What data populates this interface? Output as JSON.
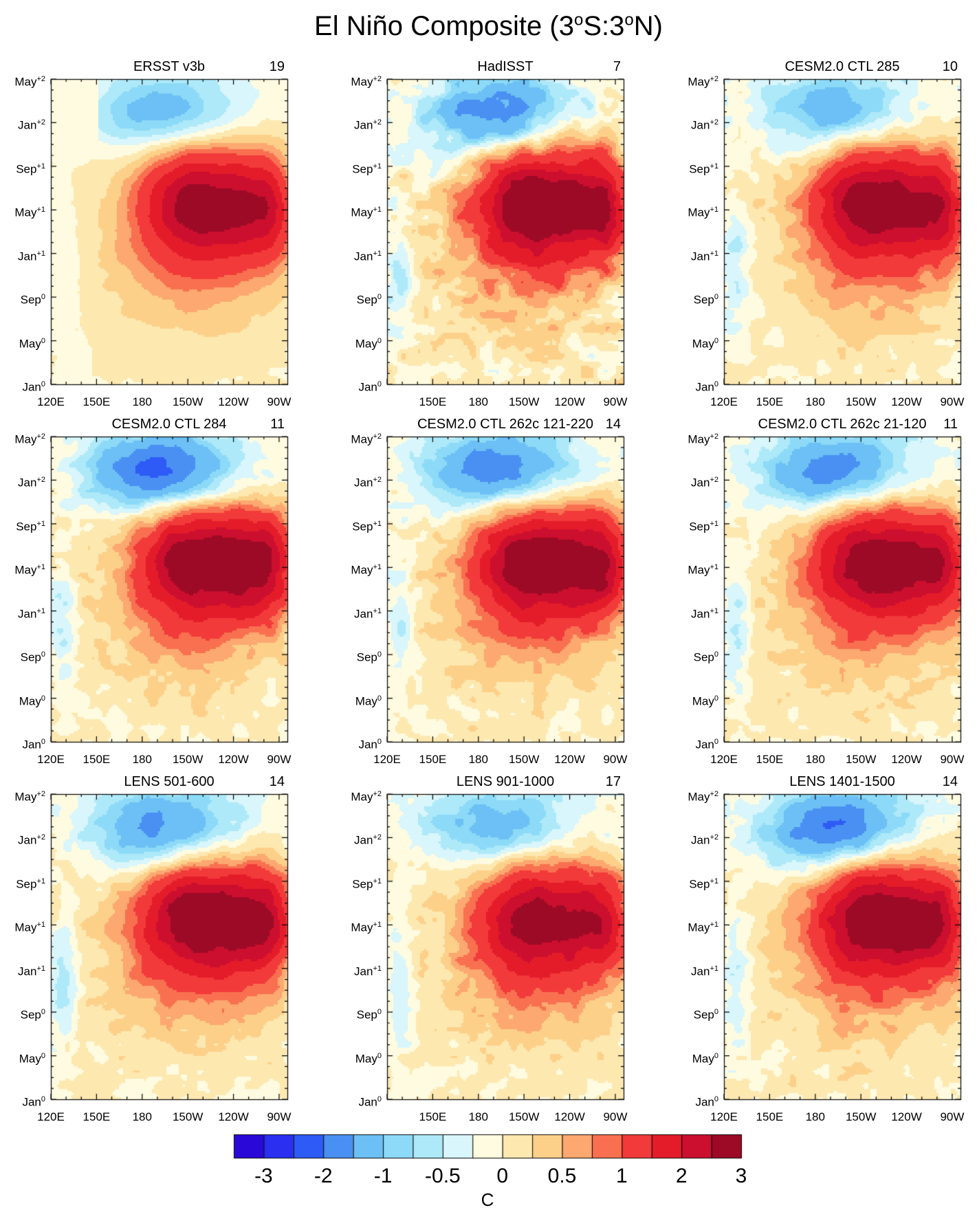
{
  "figure": {
    "title_base": "El Niño Composite (3",
    "title_parts": [
      "El Niño Composite (3",
      "o",
      "S:3",
      "o",
      "N)"
    ],
    "units": "C"
  },
  "colorbar": {
    "labels": [
      "-3",
      "-2",
      "-1",
      "-0.5",
      "0",
      "0.5",
      "1",
      "2",
      "3"
    ],
    "levels": [
      -3,
      -2.5,
      -2,
      -1.5,
      -1,
      -0.75,
      -0.5,
      -0.25,
      0,
      0.25,
      0.5,
      0.75,
      1,
      1.5,
      2,
      2.5,
      3
    ],
    "colors": [
      "#2a09d8",
      "#2a2ff0",
      "#2e5bf5",
      "#4a90f2",
      "#6cc0f5",
      "#8cdaf7",
      "#aee9f9",
      "#d8f6fb",
      "#fffbe0",
      "#fde8b0",
      "#fdd08a",
      "#fca870",
      "#f87050",
      "#f23a3a",
      "#e41c2a",
      "#cc0f2e",
      "#9c0a26"
    ]
  },
  "axes": {
    "y_ticks": [
      {
        "month": "Jan",
        "sup": "0"
      },
      {
        "month": "May",
        "sup": "0"
      },
      {
        "month": "Sep",
        "sup": "0"
      },
      {
        "month": "Jan",
        "sup": "+1"
      },
      {
        "month": "May",
        "sup": "+1"
      },
      {
        "month": "Sep",
        "sup": "+1"
      },
      {
        "month": "Jan",
        "sup": "+2"
      },
      {
        "month": "May",
        "sup": "+2"
      }
    ],
    "x_ticks": [
      "120E",
      "150E",
      "180",
      "150W",
      "120W",
      "90W"
    ],
    "x_ticks_no120E": [
      "150E",
      "180",
      "150W",
      "120W",
      "90W"
    ]
  },
  "chart_data": [
    {
      "type": "heatmap",
      "title": "ERSST v3b",
      "count": "19",
      "peak": 2.3,
      "la_nina": -1.0,
      "style": "obs_smooth"
    },
    {
      "type": "heatmap",
      "title": "HadISST",
      "count": "7",
      "peak": 2.6,
      "la_nina": -1.6,
      "style": "obs_noisy"
    },
    {
      "type": "heatmap",
      "title": "CESM2.0 CTL 285",
      "count": "10",
      "peak": 2.4,
      "la_nina": -1.0,
      "style": "model"
    },
    {
      "type": "heatmap",
      "title": "CESM2.0 CTL 284",
      "count": "11",
      "peak": 2.6,
      "la_nina": -2.0,
      "style": "model"
    },
    {
      "type": "heatmap",
      "title": "CESM2.0 CTL 262c 121-220",
      "count": "14",
      "peak": 2.6,
      "la_nina": -1.7,
      "style": "model"
    },
    {
      "type": "heatmap",
      "title": "CESM2.0 CTL 262c 21-120",
      "count": "11",
      "peak": 2.4,
      "la_nina": -1.6,
      "style": "model"
    },
    {
      "type": "heatmap",
      "title": "LENS 501-600",
      "count": "14",
      "peak": 2.6,
      "la_nina": -1.4,
      "style": "model"
    },
    {
      "type": "heatmap",
      "title": "LENS 901-1000",
      "count": "17",
      "peak": 2.2,
      "la_nina": -1.1,
      "style": "model"
    },
    {
      "type": "heatmap",
      "title": "LENS 1401-1500",
      "count": "14",
      "peak": 2.5,
      "la_nina": -1.8,
      "style": "model"
    }
  ]
}
